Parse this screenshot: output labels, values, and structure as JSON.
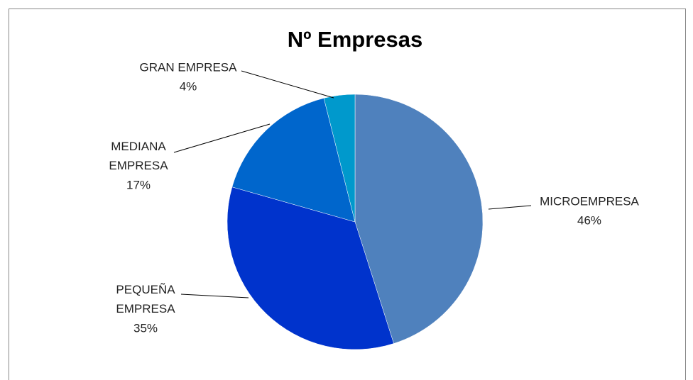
{
  "chart_data": {
    "type": "pie",
    "title": "Nº Empresas",
    "categories": [
      "MICROEMPRESA",
      "PEQUEÑA EMPRESA",
      "MEDIANA EMPRESA",
      "GRAN EMPRESA"
    ],
    "values": [
      46,
      35,
      17,
      4
    ],
    "value_labels": [
      "46%",
      "35%",
      "17%",
      "4%"
    ],
    "colors": [
      "#4f81bd",
      "#0033cc",
      "#0066cc",
      "#0099cc"
    ]
  }
}
